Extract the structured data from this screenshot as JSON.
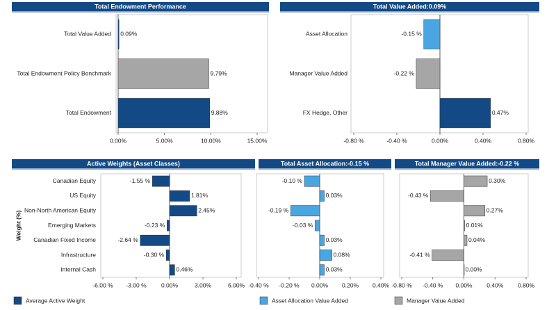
{
  "chart_data": [
    {
      "type": "bar",
      "orientation": "horizontal",
      "title": "Total Endowment Performance",
      "categories": [
        "Total Value Added",
        "Total Endowment Policy Benchmark",
        "Total Endowment"
      ],
      "values": [
        0.09,
        9.79,
        9.88
      ],
      "value_labels": [
        "0.09%",
        "9.79%",
        "9.88%"
      ],
      "colors": [
        "#134a86",
        "#a6a6a6",
        "#134a86"
      ],
      "xlim": [
        0,
        15
      ],
      "xticks": [
        {
          "value": 0,
          "label": "0.00%"
        },
        {
          "value": 5,
          "label": "5.00%"
        },
        {
          "value": 10,
          "label": "10.00%"
        },
        {
          "value": 15,
          "label": "15.00%"
        }
      ]
    },
    {
      "type": "bar",
      "orientation": "horizontal",
      "title": "Total Value Added:0.09%",
      "categories": [
        "Asset Allocation",
        "Manager Value Added",
        "FX Hedge, Other"
      ],
      "values": [
        -0.15,
        -0.22,
        0.47
      ],
      "value_labels": [
        "-0.15 %",
        "-0.22 %",
        "0.47%"
      ],
      "colors": [
        "#4aa6e0",
        "#a6a6a6",
        "#134a86"
      ],
      "xlim": [
        -0.8,
        0.8
      ],
      "xticks": [
        {
          "value": -0.8,
          "label": "-0.80 %"
        },
        {
          "value": -0.4,
          "label": "-0.40 %"
        },
        {
          "value": 0,
          "label": "0.00%"
        },
        {
          "value": 0.4,
          "label": "0.40%"
        },
        {
          "value": 0.8,
          "label": "0.80%"
        }
      ]
    },
    {
      "type": "bar",
      "orientation": "horizontal",
      "title": "Active Weights (Asset Classes)",
      "y_label": "Weight (%)",
      "categories": [
        "Canadian Equity",
        "US Equity",
        "Non-North American Equity",
        "Emerging Markets",
        "Canadian Fixed Income",
        "Infrastructure",
        "Internal Cash"
      ],
      "series": [
        {
          "name": "Average Active Weight",
          "color": "#134a86",
          "values": [
            -1.55,
            1.81,
            2.45,
            -0.23,
            -2.64,
            -0.3,
            0.46
          ],
          "value_labels": [
            "-1.55 %",
            "1.81%",
            "2.45%",
            "-0.23 %",
            "-2.64 %",
            "-0.30 %",
            "0.46%"
          ]
        }
      ],
      "xlim": [
        -6,
        6
      ],
      "xticks": [
        {
          "value": -6,
          "label": "-6.00 %"
        },
        {
          "value": -3,
          "label": "-3.00 %"
        },
        {
          "value": 0,
          "label": "0.00%"
        },
        {
          "value": 3,
          "label": "3.00%"
        },
        {
          "value": 6,
          "label": "6.00%"
        }
      ]
    },
    {
      "type": "bar",
      "orientation": "horizontal",
      "title": "Total Asset Allocation:-0.15 %",
      "series": [
        {
          "name": "Asset Allocation Value Added",
          "color": "#4aa6e0",
          "values": [
            -0.1,
            0.03,
            -0.19,
            -0.03,
            0.03,
            0.08,
            0.03
          ],
          "value_labels": [
            "-0.10 %",
            "0.03%",
            "-0.19 %",
            "-0.03 %",
            "0.03%",
            "0.08%",
            "0.03%"
          ]
        }
      ],
      "xlim": [
        -0.4,
        0.4
      ],
      "xticks": [
        {
          "value": -0.4,
          "label": "-0.40 %"
        },
        {
          "value": -0.2,
          "label": "-0.20 %"
        },
        {
          "value": 0,
          "label": "0.00%"
        },
        {
          "value": 0.2,
          "label": "0.20%"
        },
        {
          "value": 0.4,
          "label": "0.40%"
        }
      ]
    },
    {
      "type": "bar",
      "orientation": "horizontal",
      "title": "Total Manager Value Added:-0.22 %",
      "series": [
        {
          "name": "Manager Value Added",
          "color": "#a6a6a6",
          "values": [
            0.3,
            -0.43,
            0.27,
            0.01,
            0.04,
            -0.41,
            0.0
          ],
          "value_labels": [
            "0.30%",
            "-0.43 %",
            "0.27%",
            "0.01%",
            "0.04%",
            "-0.41 %",
            "0.00%"
          ]
        }
      ],
      "xlim": [
        -0.8,
        0.8
      ],
      "xticks": [
        {
          "value": -0.8,
          "label": "-0.80 %"
        },
        {
          "value": -0.4,
          "label": "-0.40 %"
        },
        {
          "value": 0,
          "label": "0.00%"
        },
        {
          "value": 0.4,
          "label": "0.40%"
        },
        {
          "value": 0.8,
          "label": "0.80%"
        }
      ]
    }
  ]
}
